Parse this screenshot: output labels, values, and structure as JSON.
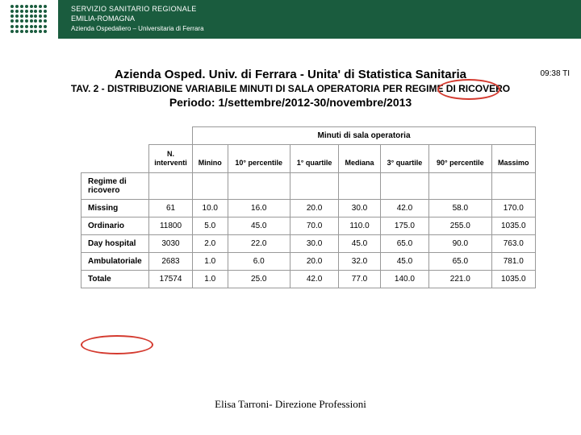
{
  "header": {
    "line1": "SERVIZIO SANITARIO REGIONALE",
    "line2": "EMILIA-ROMAGNA",
    "line3": "Azienda Ospedaliero – Universitaria di Ferrara"
  },
  "timestamp": "09:38 TI",
  "title": {
    "t1": "Azienda Osped. Univ. di Ferrara - Unita' di Statistica Sanitaria",
    "t2": "TAV. 2 - DISTRIBUZIONE VARIABILE MINUTI DI SALA OPERATORIA PER REGIME DI RICOVERO",
    "t3": "Periodo: 1/settembre/2012-30/novembre/2013"
  },
  "table": {
    "super_header": "Minuti di sala operatoria",
    "group_header": "Regime di ricovero",
    "columns": {
      "n": "N. interventi",
      "min": "Minino",
      "p10": "10° percentile",
      "q1": "1° quartile",
      "med": "Mediana",
      "q3": "3° quartile",
      "p90": "90° percentile",
      "max": "Massimo"
    },
    "rows": [
      {
        "label": "Missing",
        "n": "61",
        "min": "10.0",
        "p10": "16.0",
        "q1": "20.0",
        "med": "30.0",
        "q3": "42.0",
        "p90": "58.0",
        "max": "170.0"
      },
      {
        "label": "Ordinario",
        "n": "11800",
        "min": "5.0",
        "p10": "45.0",
        "q1": "70.0",
        "med": "110.0",
        "q3": "175.0",
        "p90": "255.0",
        "max": "1035.0"
      },
      {
        "label": "Day hospital",
        "n": "3030",
        "min": "2.0",
        "p10": "22.0",
        "q1": "30.0",
        "med": "45.0",
        "q3": "65.0",
        "p90": "90.0",
        "max": "763.0"
      },
      {
        "label": "Ambulatoriale",
        "n": "2683",
        "min": "1.0",
        "p10": "6.0",
        "q1": "20.0",
        "med": "32.0",
        "q3": "45.0",
        "p90": "65.0",
        "max": "781.0"
      },
      {
        "label": "Totale",
        "n": "17574",
        "min": "1.0",
        "p10": "25.0",
        "q1": "42.0",
        "med": "77.0",
        "q3": "140.0",
        "p90": "221.0",
        "max": "1035.0"
      }
    ]
  },
  "footer": "Elisa Tarroni- Direzione Professioni",
  "colors": {
    "header_bg": "#1a5c3e",
    "annotation": "#d43a2f",
    "border": "#999999"
  }
}
